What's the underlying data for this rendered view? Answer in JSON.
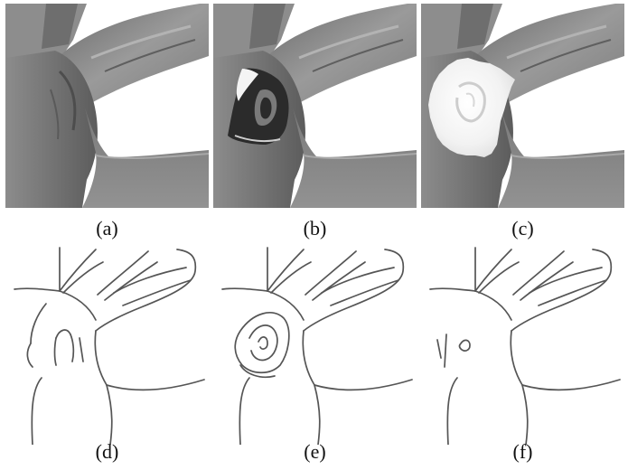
{
  "figure": {
    "panels": [
      {
        "id": "a",
        "label": "(a)",
        "kind": "render",
        "overlay": "none"
      },
      {
        "id": "b",
        "label": "(b)",
        "kind": "render",
        "overlay": "dark-patch"
      },
      {
        "id": "c",
        "label": "(c)",
        "kind": "render",
        "overlay": "white-patch"
      },
      {
        "id": "d",
        "label": "(d)",
        "kind": "lines",
        "variant": "original"
      },
      {
        "id": "e",
        "label": "(e)",
        "kind": "lines",
        "variant": "loops"
      },
      {
        "id": "f",
        "label": "(f)",
        "kind": "lines",
        "variant": "small-loop"
      }
    ],
    "colors": {
      "shade_dark": "#4a4a4a",
      "shade_mid": "#8a8a8a",
      "shade_light": "#b8b8b8",
      "line": "#555555",
      "background": "#ffffff"
    }
  }
}
